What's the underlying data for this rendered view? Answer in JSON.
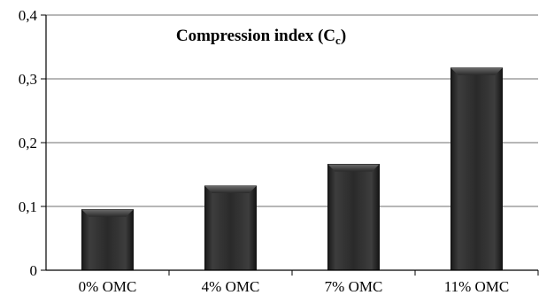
{
  "chart_data": {
    "type": "bar",
    "title": "Compression index (C",
    "title_subscript": "c",
    "title_suffix": ")",
    "categories": [
      "0% OMC",
      "4% OMC",
      "7% OMC",
      "11% OMC"
    ],
    "values": [
      0.095,
      0.132,
      0.166,
      0.317
    ],
    "ylim": [
      0,
      0.4
    ],
    "yticks": [
      "0",
      "0,1",
      "0,2",
      "0,3",
      "0,4"
    ],
    "ytick_values": [
      0,
      0.1,
      0.2,
      0.3,
      0.4
    ],
    "xlabel": "",
    "ylabel": "",
    "grid": true,
    "bar_color": "#2b2b2b",
    "grid_color": "#8c8c8c"
  }
}
